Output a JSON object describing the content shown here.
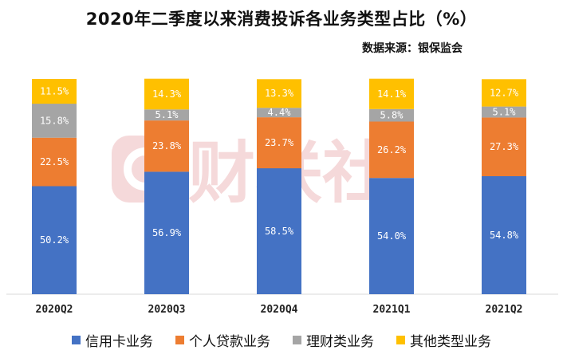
{
  "title": "2020年二季度以来消费投诉各业务类型占比（%）",
  "source": "数据来源：银保监会",
  "watermark": "财联社",
  "chart_data": {
    "type": "bar",
    "stacked": true,
    "categories": [
      "2020Q2",
      "2020Q3",
      "2020Q4",
      "2021Q1",
      "2021Q2"
    ],
    "ylim": [
      0,
      100
    ],
    "grid": false,
    "legend_position": "bottom",
    "series": [
      {
        "name": "信用卡业务",
        "color": "#4472c4",
        "values": [
          50.2,
          56.9,
          58.5,
          54.0,
          54.8
        ],
        "labels": [
          "50.2%",
          "56.9%",
          "58.5%",
          "54.0%",
          "54.8%"
        ]
      },
      {
        "name": "个人贷款业务",
        "color": "#ed7d31",
        "values": [
          22.5,
          23.8,
          23.7,
          26.2,
          27.3
        ],
        "labels": [
          "22.5%",
          "23.8%",
          "23.7%",
          "26.2%",
          "27.3%"
        ]
      },
      {
        "name": "理财类业务",
        "color": "#a5a5a5",
        "values": [
          15.8,
          5.1,
          4.4,
          5.8,
          5.1
        ],
        "labels": [
          "15.8%",
          "5.1%",
          "4.4%",
          "5.8%",
          "5.1%"
        ]
      },
      {
        "name": "其他类型业务",
        "color": "#ffc000",
        "values": [
          11.5,
          14.3,
          13.3,
          14.1,
          12.7
        ],
        "labels": [
          "11.5%",
          "14.3%",
          "13.3%",
          "14.1%",
          "12.7%"
        ]
      }
    ]
  }
}
